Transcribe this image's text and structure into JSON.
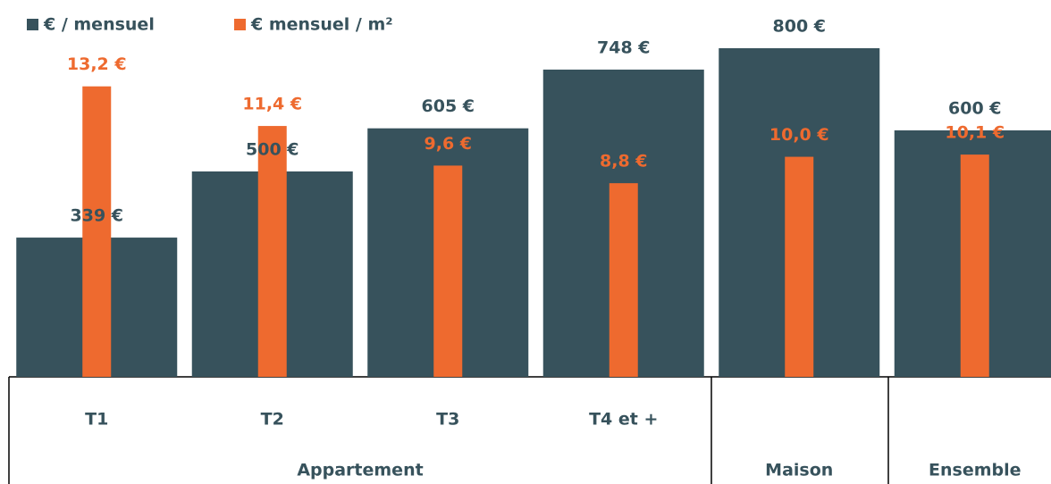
{
  "chart_data": {
    "type": "bar",
    "categories": [
      "T1",
      "T2",
      "T3",
      "T4 et +",
      null,
      null
    ],
    "groups": [
      {
        "label": "Appartement",
        "span": 4
      },
      {
        "label": "Maison",
        "span": 1
      },
      {
        "label": "Ensemble",
        "span": 1
      }
    ],
    "series": [
      {
        "name": "€ / mensuel",
        "color": "#37525c",
        "values": [
          339,
          500,
          605,
          748,
          800,
          600
        ],
        "value_labels": [
          "339 €",
          "500 €",
          "605 €",
          "748 €",
          "800 €",
          "600 €"
        ]
      },
      {
        "name": "€ mensuel / m²",
        "color": "#ee6a2f",
        "axis": "y2",
        "values": [
          13.2,
          11.4,
          9.6,
          8.8,
          10.0,
          10.1
        ],
        "value_labels": [
          "13,2 €",
          "11,4 €",
          "9,6 €",
          "8,8 €",
          "10,0 €",
          "10,1 €"
        ]
      }
    ],
    "ylim": [
      0,
      900
    ],
    "y2lim": [
      0,
      16.8
    ],
    "legend": "top-left"
  }
}
